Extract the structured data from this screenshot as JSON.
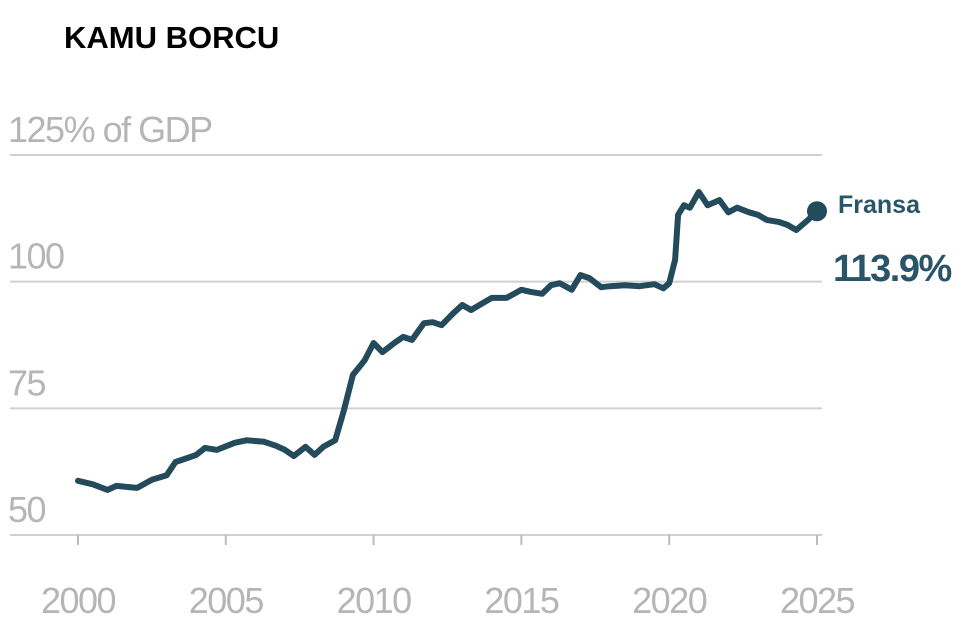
{
  "chart_data": {
    "type": "line",
    "title": "KAMU BORCU",
    "x": [
      2000.0,
      2000.5,
      2001.0,
      2001.3,
      2002.0,
      2002.5,
      2003.0,
      2003.3,
      2003.7,
      2004.0,
      2004.3,
      2004.7,
      2005.3,
      2005.7,
      2006.3,
      2006.7,
      2007.0,
      2007.3,
      2007.7,
      2008.0,
      2008.3,
      2008.7,
      2009.0,
      2009.3,
      2009.7,
      2010.0,
      2010.3,
      2010.7,
      2011.0,
      2011.3,
      2011.7,
      2012.0,
      2012.3,
      2012.7,
      2013.0,
      2013.3,
      2013.7,
      2014.0,
      2014.5,
      2015.0,
      2015.3,
      2015.7,
      2016.0,
      2016.3,
      2016.7,
      2017.0,
      2017.3,
      2017.7,
      2018.0,
      2018.5,
      2019.0,
      2019.5,
      2019.8,
      2020.0,
      2020.2,
      2020.3,
      2020.5,
      2020.7,
      2021.0,
      2021.3,
      2021.7,
      2022.0,
      2022.3,
      2022.7,
      2023.0,
      2023.3,
      2023.7,
      2024.0,
      2024.3,
      2024.7,
      2025.0
    ],
    "series": [
      {
        "name": "Fransa",
        "color": "#234b5c",
        "values": [
          60.7,
          60.0,
          58.9,
          59.7,
          59.3,
          60.9,
          61.8,
          64.4,
          65.2,
          65.8,
          67.2,
          66.8,
          68.2,
          68.7,
          68.4,
          67.6,
          66.8,
          65.6,
          67.4,
          65.8,
          67.4,
          68.7,
          74.7,
          81.6,
          84.5,
          87.9,
          86.1,
          87.9,
          89.1,
          88.5,
          91.8,
          92.0,
          91.4,
          93.8,
          95.4,
          94.4,
          95.8,
          96.8,
          96.8,
          98.4,
          98.0,
          97.6,
          99.3,
          99.7,
          98.4,
          101.3,
          100.7,
          98.9,
          99.1,
          99.3,
          99.1,
          99.5,
          98.7,
          99.7,
          104.3,
          113.2,
          115.1,
          114.6,
          117.7,
          115.1,
          116.1,
          113.7,
          114.6,
          113.7,
          113.2,
          112.2,
          111.8,
          111.2,
          110.2,
          112.2,
          113.9
        ]
      }
    ],
    "annotations": [
      {
        "text": "113.9%",
        "value": 113.9
      }
    ],
    "xlim": [
      2000,
      2025
    ],
    "xticks": [
      2000,
      2005,
      2010,
      2015,
      2020,
      2025
    ],
    "ylim": [
      50,
      125
    ],
    "yticks": [
      {
        "value": 125,
        "label": "125% of GDP"
      },
      100,
      75,
      50
    ],
    "grid": true
  }
}
